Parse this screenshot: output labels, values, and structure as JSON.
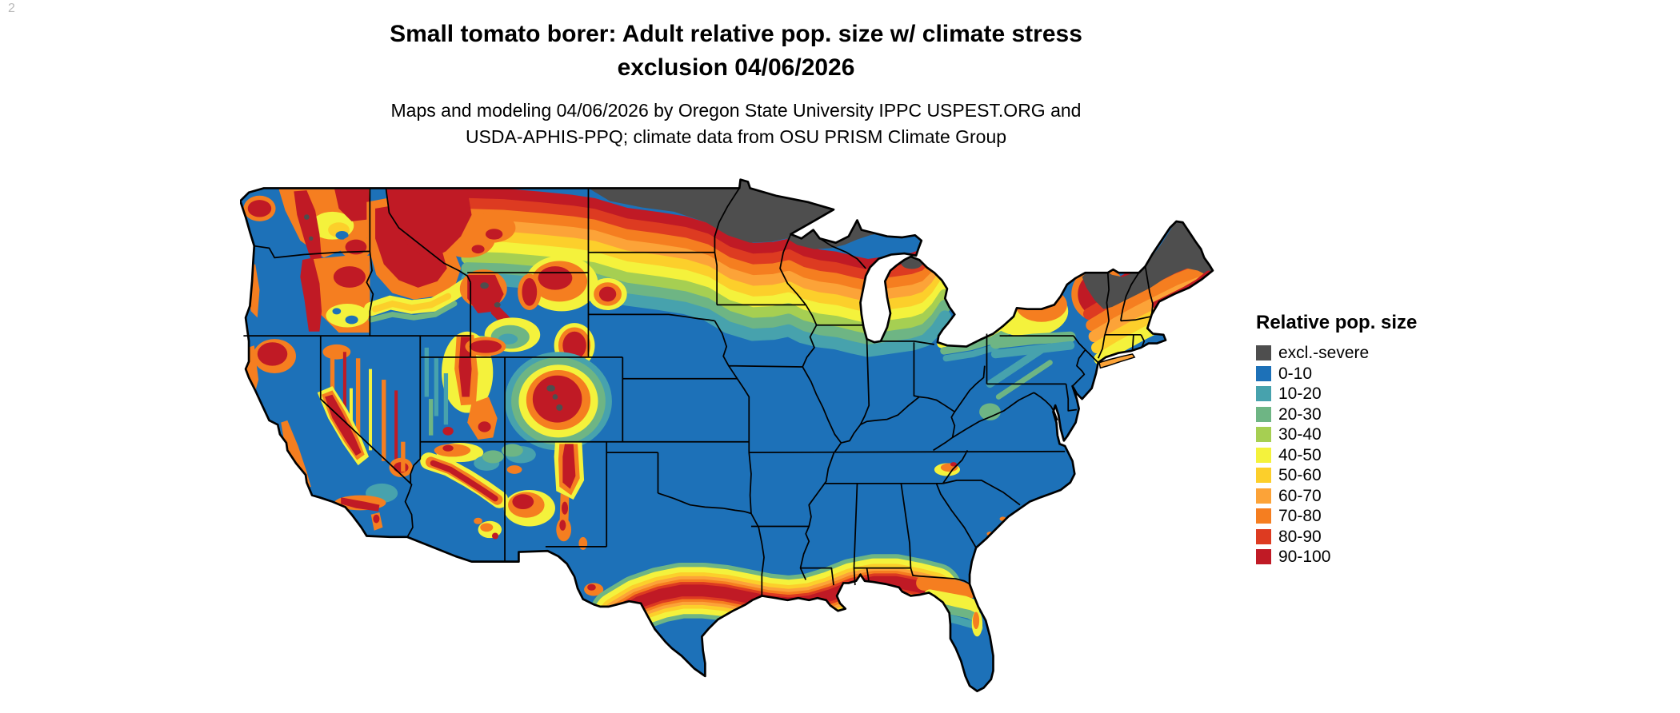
{
  "corner_mark": "2",
  "title": {
    "line1": "Small tomato borer: Adult relative pop. size w/ climate stress",
    "line2": "exclusion 04/06/2026"
  },
  "subtitle": {
    "line1": "Maps and modeling 04/06/2026 by Oregon State University IPPC USPEST.ORG and",
    "line2": "USDA-APHIS-PPQ; climate data from OSU PRISM Climate Group"
  },
  "legend": {
    "title": "Relative pop. size",
    "entries": [
      {
        "label": "excl.-severe",
        "color": "#4e4e4e"
      },
      {
        "label": "0-10",
        "color": "#1d71b8"
      },
      {
        "label": "10-20",
        "color": "#47a2ad"
      },
      {
        "label": "20-30",
        "color": "#6eb584"
      },
      {
        "label": "30-40",
        "color": "#a6cf52"
      },
      {
        "label": "40-50",
        "color": "#f4f23c"
      },
      {
        "label": "50-60",
        "color": "#fccf2b"
      },
      {
        "label": "60-70",
        "color": "#fca338"
      },
      {
        "label": "70-80",
        "color": "#f57e20"
      },
      {
        "label": "80-90",
        "color": "#dd3b21"
      },
      {
        "label": "90-100",
        "color": "#c01a25"
      }
    ]
  }
}
